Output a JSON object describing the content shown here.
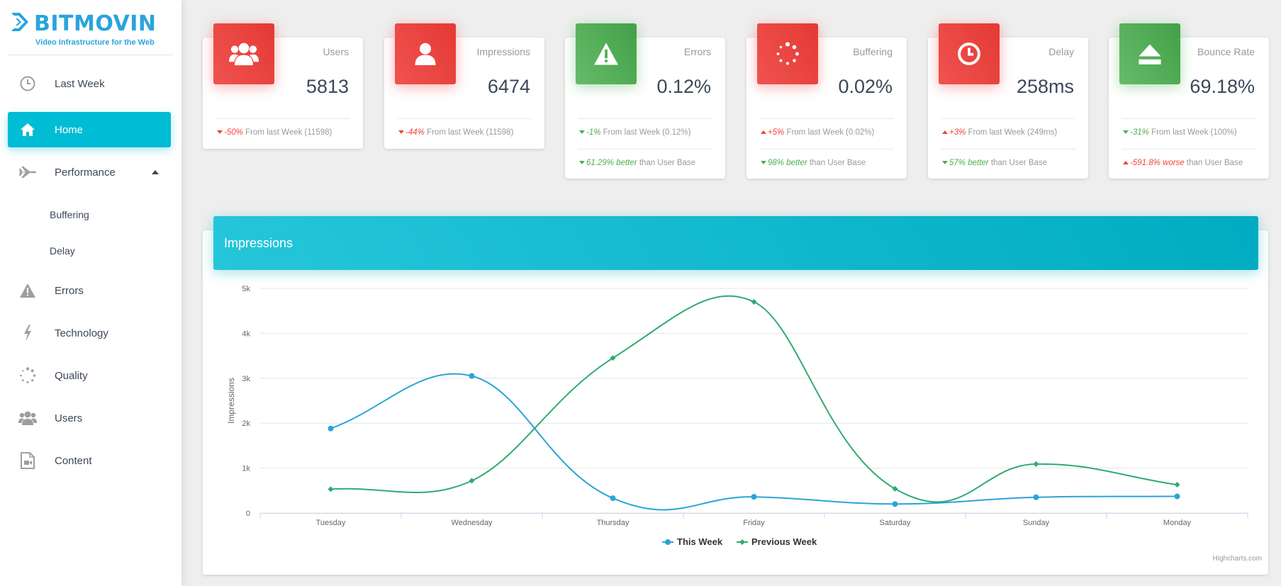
{
  "brand": {
    "name": "BITMOVIN",
    "tagline": "Video Infrastructure for the Web",
    "color": "#2aa4dc"
  },
  "sidebar": {
    "items": [
      {
        "label": "Last Week",
        "icon": "clock-icon"
      },
      {
        "label": "Home",
        "icon": "home-icon",
        "active": true
      },
      {
        "label": "Performance",
        "icon": "plane-icon",
        "expanded": true
      },
      {
        "label": "Errors",
        "icon": "warning-icon"
      },
      {
        "label": "Technology",
        "icon": "bolt-icon"
      },
      {
        "label": "Quality",
        "icon": "spinner-icon"
      },
      {
        "label": "Users",
        "icon": "users-icon"
      },
      {
        "label": "Content",
        "icon": "file-video-icon"
      }
    ],
    "subitems": [
      {
        "label": "Buffering"
      },
      {
        "label": "Delay"
      }
    ],
    "active_color": "#00bcd4"
  },
  "cards": [
    {
      "title": "Users",
      "value": "5813",
      "icon": "users-icon",
      "color": "red",
      "line1": {
        "direction": "down",
        "tone": "neg",
        "change": "-50%",
        "text": "From last Week (11598)"
      }
    },
    {
      "title": "Impressions",
      "value": "6474",
      "icon": "user-icon",
      "color": "red",
      "line1": {
        "direction": "down",
        "tone": "neg",
        "change": "-44%",
        "text": "From last Week (11598)"
      }
    },
    {
      "title": "Errors",
      "value": "0.12%",
      "icon": "warning-icon",
      "color": "green",
      "line1": {
        "direction": "down",
        "tone": "pos",
        "change": "-1%",
        "text": "From last Week (0.12%)"
      },
      "line2": {
        "direction": "down",
        "tone": "pos",
        "change": "61.29% better",
        "text": "than User Base"
      }
    },
    {
      "title": "Buffering",
      "value": "0.02%",
      "icon": "spinner-icon",
      "color": "red",
      "line1": {
        "direction": "up",
        "tone": "neg",
        "change": "+5%",
        "text": "From last Week (0.02%)"
      },
      "line2": {
        "direction": "down",
        "tone": "pos",
        "change": "98% better",
        "text": "than User Base"
      }
    },
    {
      "title": "Delay",
      "value": "258ms",
      "icon": "clock-icon",
      "color": "red",
      "line1": {
        "direction": "up",
        "tone": "neg",
        "change": "+3%",
        "text": "From last Week (249ms)"
      },
      "line2": {
        "direction": "down",
        "tone": "pos",
        "change": "57% better",
        "text": "than User Base"
      }
    },
    {
      "title": "Bounce Rate",
      "value": "69.18%",
      "icon": "eject-icon",
      "color": "green",
      "line1": {
        "direction": "down",
        "tone": "pos",
        "change": "-31%",
        "text": "From last Week (100%)"
      },
      "line2": {
        "direction": "up",
        "tone": "neg",
        "change": "-591.8% worse",
        "text": "than User Base"
      }
    }
  ],
  "chart_card": {
    "title": "Impressions",
    "credits": "Highcharts.com"
  },
  "chart_data": {
    "type": "line",
    "title": "",
    "xlabel": "",
    "ylabel": "Impressions",
    "categories": [
      "Tuesday",
      "Wednesday",
      "Thursday",
      "Friday",
      "Saturday",
      "Sunday",
      "Monday"
    ],
    "ylim": [
      0,
      5000
    ],
    "yticks": [
      0,
      1000,
      2000,
      3000,
      4000,
      5000
    ],
    "ytick_labels": [
      "0",
      "1k",
      "2k",
      "3k",
      "4k",
      "5k"
    ],
    "grid": true,
    "legend": "bottom-center",
    "series": [
      {
        "name": "This Week",
        "color": "#2ba4d8",
        "marker": "circle",
        "values": [
          1880,
          3050,
          330,
          360,
          200,
          350,
          370
        ]
      },
      {
        "name": "Previous Week",
        "color": "#2fab70",
        "marker": "diamond",
        "values": [
          530,
          720,
          3450,
          4700,
          540,
          1090,
          630
        ]
      }
    ]
  }
}
